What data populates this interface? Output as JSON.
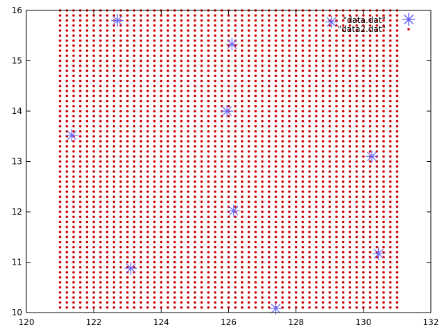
{
  "chart_data": {
    "type": "scatter",
    "xlim": [
      120,
      132
    ],
    "ylim": [
      10,
      16
    ],
    "x_ticks": [
      120,
      122,
      124,
      126,
      128,
      130,
      132
    ],
    "y_ticks": [
      10,
      11,
      12,
      13,
      14,
      15,
      16
    ],
    "grid": false,
    "legend_position": "top-right",
    "series": [
      {
        "name": "\"data.dat\"",
        "marker": "star",
        "color": "#6666ff",
        "points": [
          [
            122.7,
            15.8
          ],
          [
            126.1,
            15.33
          ],
          [
            129.05,
            15.77
          ],
          [
            131.35,
            15.82
          ],
          [
            125.95,
            14.0
          ],
          [
            121.35,
            13.52
          ],
          [
            130.25,
            13.1
          ],
          [
            126.15,
            12.02
          ],
          [
            130.45,
            11.17
          ],
          [
            123.1,
            10.88
          ],
          [
            127.4,
            10.08
          ]
        ]
      },
      {
        "name": "\"data2.dat\"",
        "marker": "dot",
        "color": "#cc0000",
        "grid_points": {
          "x_start": 121.0,
          "x_end": 131.0,
          "x_step": 0.2,
          "y_start": 10.1,
          "y_end": 16.0,
          "y_step": 0.1
        }
      }
    ]
  }
}
